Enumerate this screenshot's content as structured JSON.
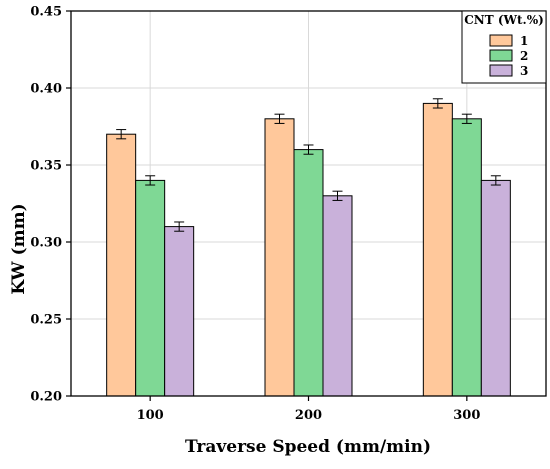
{
  "chart_data": {
    "type": "bar",
    "title": "",
    "xlabel": "Traverse Speed (mm/min)",
    "ylabel": "KW (mm)",
    "categories": [
      "100",
      "200",
      "300"
    ],
    "ylim": [
      0.2,
      0.45
    ],
    "yticks": [
      "0.20",
      "0.25",
      "0.30",
      "0.35",
      "0.40",
      "0.45"
    ],
    "grid": true,
    "legend": {
      "title": "CNT (Wt.%)",
      "placement": "top-right"
    },
    "series": [
      {
        "name": "1",
        "values": [
          0.37,
          0.38,
          0.39
        ],
        "errors": [
          0.003,
          0.003,
          0.003
        ],
        "color": "#FFC89B"
      },
      {
        "name": "2",
        "values": [
          0.34,
          0.36,
          0.38
        ],
        "errors": [
          0.003,
          0.003,
          0.003
        ],
        "color": "#7FD895"
      },
      {
        "name": "3",
        "values": [
          0.31,
          0.33,
          0.34
        ],
        "errors": [
          0.003,
          0.003,
          0.003
        ],
        "color": "#C9B1DA"
      }
    ]
  }
}
